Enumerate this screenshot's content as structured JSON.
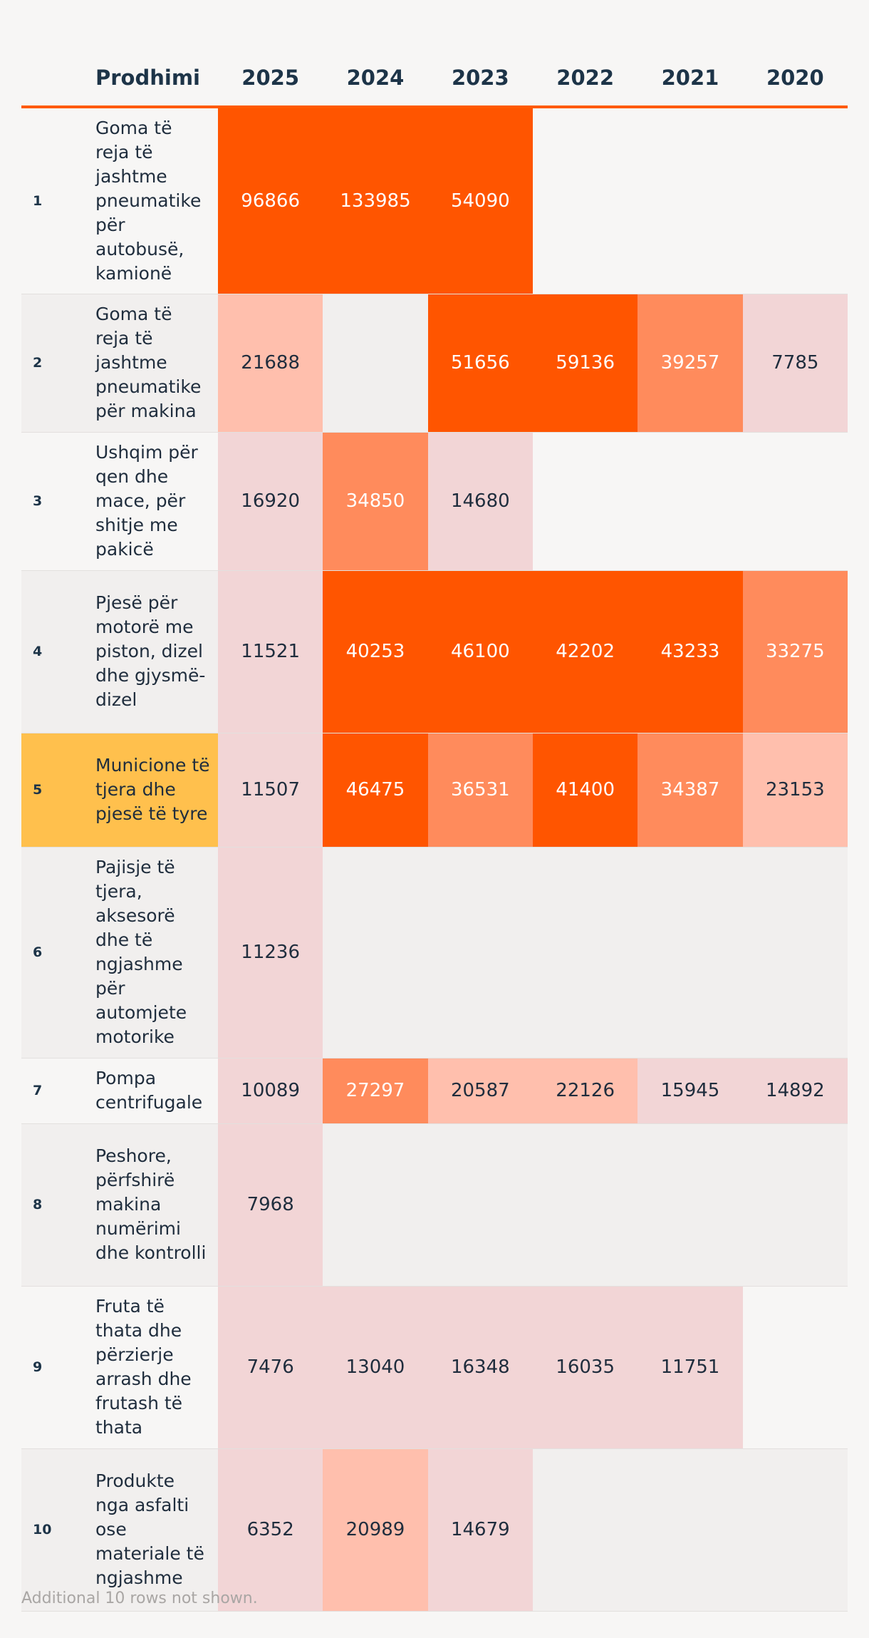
{
  "chart_data": {
    "type": "table",
    "title": "",
    "columns": [
      "",
      "Prodhimi",
      "2025",
      "2024",
      "2023",
      "2022",
      "2021",
      "2020"
    ],
    "years": [
      "2025",
      "2024",
      "2023",
      "2022",
      "2021",
      "2020"
    ],
    "rows": [
      {
        "rank": "1",
        "product": "Goma të reja të jashtme pneumatike për autobusë, kamionë",
        "values": [
          96866,
          133985,
          54090,
          null,
          null,
          null
        ]
      },
      {
        "rank": "2",
        "product": "Goma të reja të jashtme pneumatike për makina",
        "values": [
          21688,
          null,
          51656,
          59136,
          39257,
          7785
        ]
      },
      {
        "rank": "3",
        "product": "Ushqim për qen dhe mace, për shitje me pakicë",
        "values": [
          16920,
          34850,
          14680,
          null,
          null,
          null
        ]
      },
      {
        "rank": "4",
        "product": "Pjesë për motorë me piston, dizel dhe gjysmë-dizel",
        "values": [
          11521,
          40253,
          46100,
          42202,
          43233,
          33275
        ]
      },
      {
        "rank": "5",
        "product": "Municione të tjera dhe pjesë të tyre",
        "values": [
          11507,
          46475,
          36531,
          41400,
          34387,
          23153
        ],
        "highlight": true
      },
      {
        "rank": "6",
        "product": "Pajisje të tjera, aksesorë dhe të ngjashme për automjete motorike",
        "values": [
          11236,
          null,
          null,
          null,
          null,
          null
        ]
      },
      {
        "rank": "7",
        "product": "Pompa centrifugale",
        "values": [
          10089,
          27297,
          20587,
          22126,
          15945,
          14892
        ]
      },
      {
        "rank": "8",
        "product": "Peshore, përfshirë makina numërimi dhe kontrolli",
        "values": [
          7968,
          null,
          null,
          null,
          null,
          null
        ]
      },
      {
        "rank": "9",
        "product": "Fruta të thata dhe përzierje arrash dhe frutash të thata",
        "values": [
          7476,
          13040,
          16348,
          16035,
          11751,
          null
        ]
      },
      {
        "rank": "10",
        "product": "Produkte nga asfalti ose materiale të ngjashme",
        "values": [
          6352,
          20989,
          14679,
          null,
          null,
          null
        ]
      }
    ],
    "color_scale": {
      "thresholds": [
        10000,
        20000,
        25000,
        40000
      ],
      "colors": [
        "#f2d5d6",
        "#f2d5d6",
        "#ffbfad",
        "#ff8b5c",
        "#ff5500"
      ],
      "light_text_min": 25000
    },
    "highlight_color": "#ffc04d",
    "accent_color": "#ff5a00"
  },
  "footnote": "Additional 10 rows not shown."
}
